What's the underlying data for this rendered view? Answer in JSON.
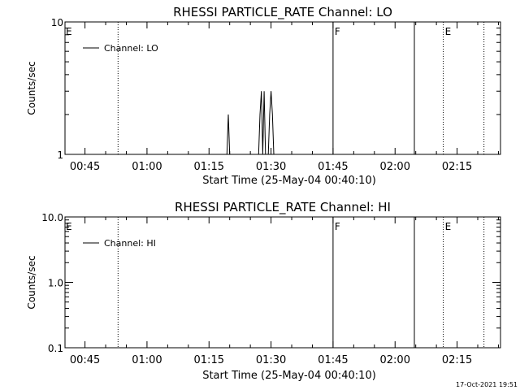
{
  "timestamp": "17-Oct-2021 19:51",
  "chart_data": [
    {
      "type": "line",
      "title": "RHESSI PARTICLE_RATE Channel: LO",
      "xlabel": "Start Time (25-May-04 00:40:10)",
      "ylabel": "Counts/sec",
      "y_scale": "log",
      "ylim": [
        1,
        10
      ],
      "y_ticks": [
        1,
        10
      ],
      "y_tick_labels": [
        "1",
        "10"
      ],
      "xlim": [
        "00:40:10",
        "02:25:30"
      ],
      "x_ticks": [
        "00:45",
        "01:00",
        "01:15",
        "01:30",
        "01:45",
        "02:00",
        "02:15"
      ],
      "legend": "Channel: LO",
      "legend_position": "top-left",
      "grid": false,
      "series": [
        {
          "name": "Channel: LO",
          "x": [
            "01:19:20",
            "01:19:40",
            "01:20:00",
            "01:27:00",
            "01:27:20",
            "01:27:40",
            "01:28:00",
            "01:28:20",
            "01:28:40",
            "01:29:00",
            "01:29:20",
            "01:29:40",
            "01:30:00",
            "01:30:20",
            "01:30:40"
          ],
          "y": [
            1,
            2,
            1,
            1,
            2,
            3,
            1,
            3,
            1,
            1,
            1,
            2,
            3,
            2,
            1
          ]
        }
      ],
      "markers": [
        {
          "time": "00:53:00",
          "style": "dotted",
          "label": "E"
        },
        {
          "time": "01:45:00",
          "style": "solid",
          "label": "F"
        },
        {
          "time": "02:04:40",
          "style": "solid",
          "label": ""
        },
        {
          "time": "02:11:40",
          "style": "dotted",
          "label": "E"
        },
        {
          "time": "02:21:30",
          "style": "dotted",
          "label": ""
        }
      ]
    },
    {
      "type": "line",
      "title": "RHESSI PARTICLE_RATE Channel: HI",
      "xlabel": "Start Time (25-May-04 00:40:10)",
      "ylabel": "Counts/sec",
      "y_scale": "log",
      "ylim": [
        0.1,
        10
      ],
      "y_ticks": [
        0.1,
        1,
        10
      ],
      "y_tick_labels": [
        "0.1",
        "1.0",
        "10.0"
      ],
      "xlim": [
        "00:40:10",
        "02:25:30"
      ],
      "x_ticks": [
        "00:45",
        "01:00",
        "01:15",
        "01:30",
        "01:45",
        "02:00",
        "02:15"
      ],
      "legend": "Channel: HI",
      "legend_position": "top-left",
      "grid": false,
      "series": [
        {
          "name": "Channel: HI",
          "x": [],
          "y": []
        }
      ],
      "markers": [
        {
          "time": "00:53:00",
          "style": "dotted",
          "label": "E"
        },
        {
          "time": "01:45:00",
          "style": "solid",
          "label": "F"
        },
        {
          "time": "02:04:40",
          "style": "solid",
          "label": ""
        },
        {
          "time": "02:11:40",
          "style": "dotted",
          "label": "E"
        },
        {
          "time": "02:21:30",
          "style": "dotted",
          "label": ""
        }
      ]
    }
  ]
}
